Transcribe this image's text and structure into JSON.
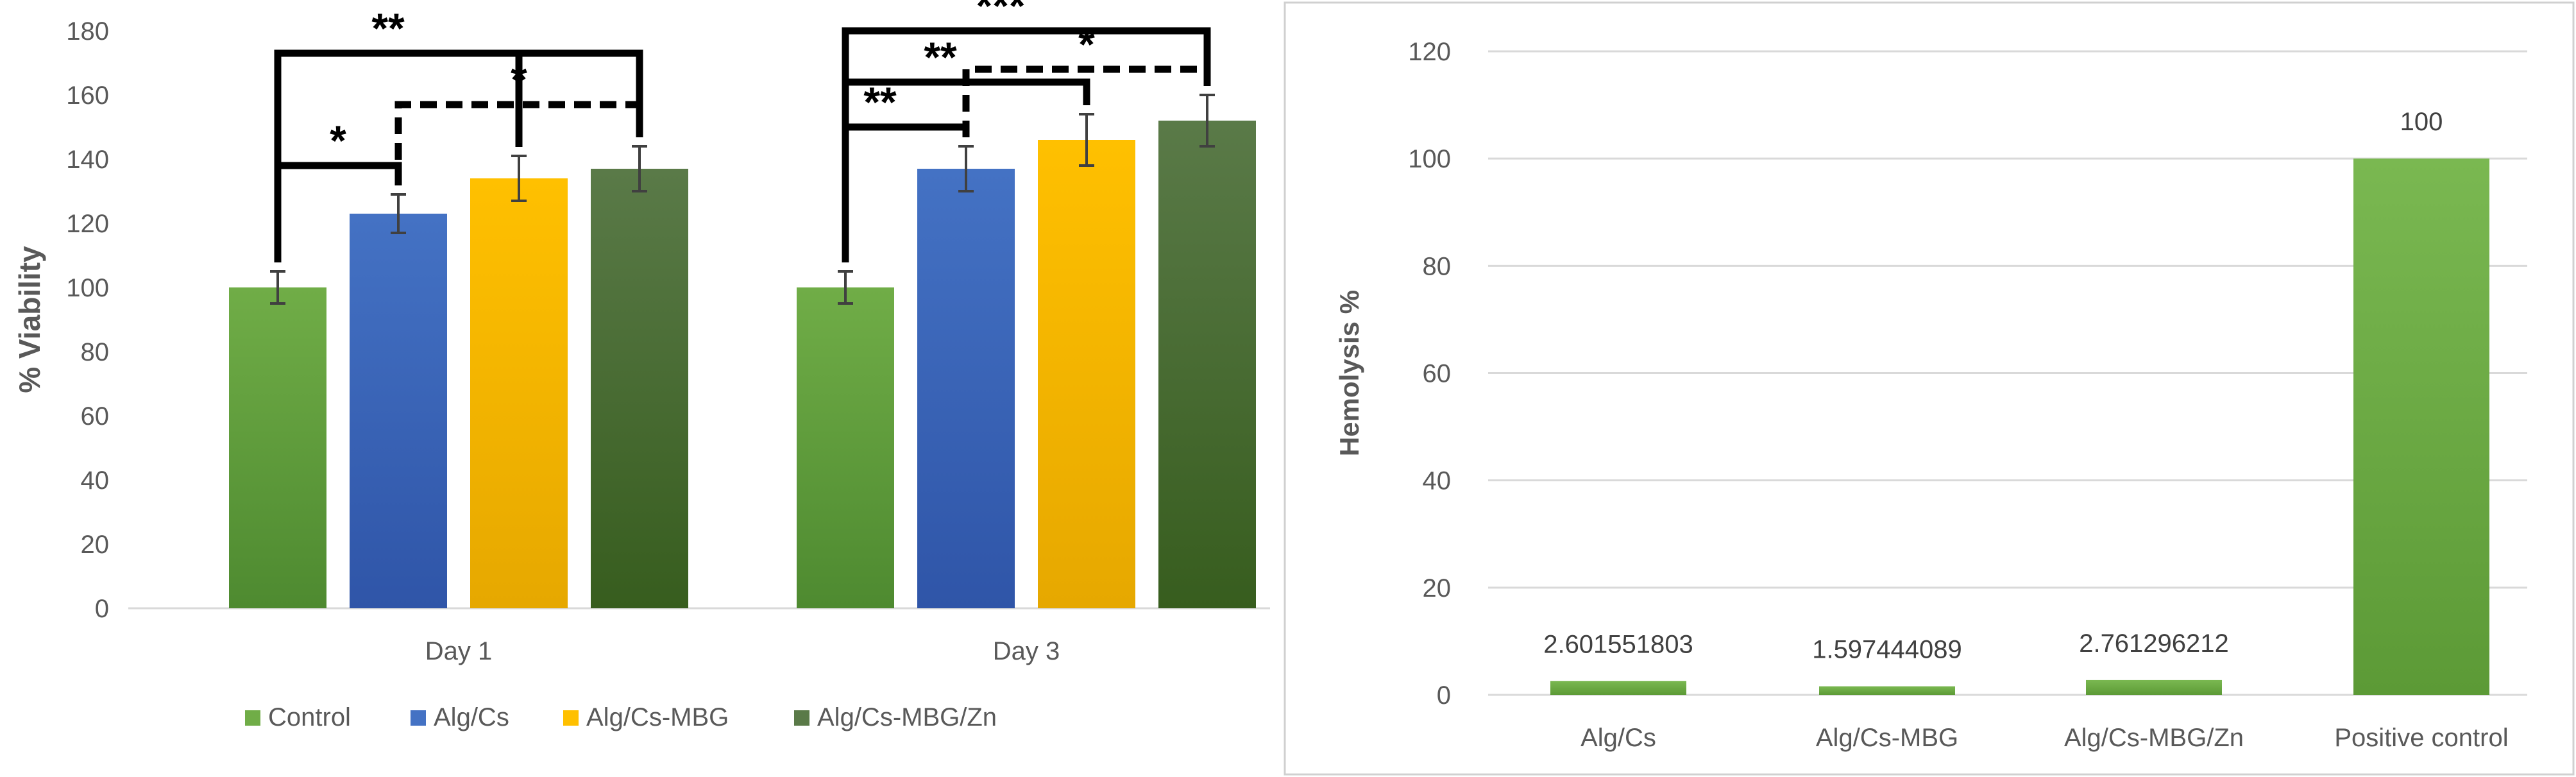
{
  "chart_data": [
    {
      "type": "bar",
      "categories": [
        "Day 1",
        "Day 3"
      ],
      "series": [
        {
          "name": "Control",
          "values": [
            100,
            100
          ],
          "errors": [
            5,
            5
          ],
          "color": "#70ad47",
          "color_dark": "#4e8a30"
        },
        {
          "name": "Alg/Cs",
          "values": [
            123,
            137
          ],
          "errors": [
            6,
            7
          ],
          "color": "#4472c4",
          "color_dark": "#2f55a8"
        },
        {
          "name": "Alg/Cs-MBG",
          "values": [
            134,
            146
          ],
          "errors": [
            7,
            8
          ],
          "color": "#ffc000",
          "color_dark": "#e6a800"
        },
        {
          "name": "Alg/Cs-MBG/Zn",
          "values": [
            137,
            152
          ],
          "errors": [
            7,
            8
          ],
          "color": "#5a7a48",
          "color_dark": "#375d1e"
        }
      ],
      "ylabel": "% Viability",
      "ylim": [
        0,
        180
      ],
      "yticks": [
        "0",
        "20",
        "40",
        "60",
        "80",
        "100",
        "120",
        "140",
        "160",
        "180"
      ],
      "grid": false,
      "legend_position": "bottom",
      "annotations": [
        {
          "group": 0,
          "from": 0,
          "to": 1,
          "top": 138,
          "label": "*",
          "style": "solid"
        },
        {
          "group": 0,
          "from": 1,
          "to": 3,
          "top": 157,
          "label": "*",
          "style": "dashed"
        },
        {
          "group": 0,
          "from": 0,
          "to": 3,
          "top": 173,
          "label": "**",
          "style": "solid",
          "extra_to": 2
        },
        {
          "group": 1,
          "from": 0,
          "to": 1,
          "top": 150,
          "label": "**",
          "style": "solid"
        },
        {
          "group": 1,
          "from": 0,
          "to": 2,
          "top": 164,
          "label": "**",
          "style": "solid"
        },
        {
          "group": 1,
          "from": 1,
          "to": 3,
          "top": 168,
          "label": "*",
          "style": "dashed"
        },
        {
          "group": 1,
          "from": 0,
          "to": 3,
          "top": 180,
          "label": "***",
          "style": "solid"
        }
      ]
    },
    {
      "type": "bar",
      "categories": [
        "Alg/Cs",
        "Alg/Cs-MBG",
        "Alg/Cs-MBG/Zn",
        "Positive control"
      ],
      "values": [
        2.601551803,
        1.597444089,
        2.761296212,
        100
      ],
      "value_labels": [
        "2.601551803",
        "1.597444089",
        "2.761296212",
        "100"
      ],
      "color": "#70ad47",
      "ylabel": "Hemolysis %",
      "ylim": [
        0,
        120
      ],
      "yticks": [
        "0",
        "20",
        "40",
        "60",
        "80",
        "100",
        "120"
      ],
      "grid": true,
      "legend_position": "none"
    }
  ]
}
